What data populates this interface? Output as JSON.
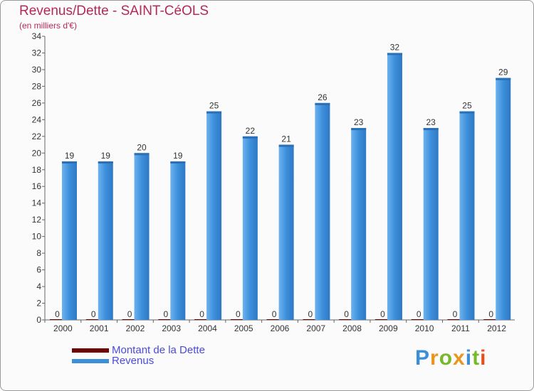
{
  "chart_data": {
    "type": "bar",
    "title": "Revenus/Dette - SAINT-CéOLS",
    "subtitle": "(en milliers d'€)",
    "categories": [
      "2000",
      "2001",
      "2002",
      "2003",
      "2004",
      "2005",
      "2006",
      "2007",
      "2008",
      "2009",
      "2010",
      "2011",
      "2012"
    ],
    "series": [
      {
        "name": "Montant de la Dette",
        "color": "#6b0000",
        "values": [
          0,
          0,
          0,
          0,
          0,
          0,
          0,
          0,
          0,
          0,
          0,
          0,
          0
        ]
      },
      {
        "name": "Revenus",
        "color": "#3d8fdb",
        "values": [
          19,
          19,
          20,
          19,
          25,
          22,
          21,
          26,
          23,
          32,
          23,
          25,
          29
        ]
      }
    ],
    "ylim": [
      0,
      34
    ],
    "yticks": [
      0,
      2,
      4,
      6,
      8,
      10,
      12,
      14,
      16,
      18,
      20,
      22,
      24,
      26,
      28,
      30,
      32,
      34
    ],
    "grid": false,
    "legend_position": "bottom-left"
  },
  "logo": {
    "letters": [
      "P",
      "r",
      "o",
      "x",
      "i",
      "t",
      "i"
    ],
    "colors": [
      "#3a8fd6",
      "#e8961c",
      "#79b82a",
      "#e8961c",
      "#3a8fd6",
      "#79b82a",
      "#e84d1c"
    ]
  }
}
